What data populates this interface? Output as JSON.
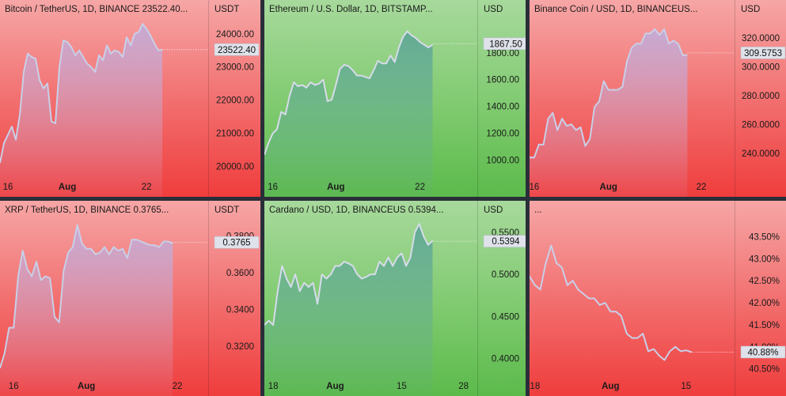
{
  "chart_data": [
    {
      "id": "btc",
      "type": "area",
      "title": "Bitcoin / TetherUS, 1D, BINANCE  23522.40...",
      "unit": "USDT",
      "theme": "red",
      "line_color": "#c9cfe8",
      "last_value_label": "23522.40",
      "last_value": 23522.4,
      "ylim": [
        19700,
        24400
      ],
      "y_ticks": [
        {
          "value": 20000,
          "label": "20000.00"
        },
        {
          "value": 21000,
          "label": "21000.00"
        },
        {
          "value": 22000,
          "label": "22000.00"
        },
        {
          "value": 23000,
          "label": "23000.00"
        },
        {
          "value": 24000,
          "label": "24000.00"
        }
      ],
      "x_ticks": [
        {
          "index": 2,
          "label": "16"
        },
        {
          "index": 17,
          "label": "Aug",
          "bold": true
        },
        {
          "index": 37,
          "label": "22"
        }
      ],
      "values": [
        20100,
        20700,
        20950,
        21200,
        20800,
        21550,
        22850,
        23400,
        23300,
        23250,
        22600,
        22350,
        22500,
        21350,
        21300,
        23000,
        23800,
        23750,
        23600,
        23350,
        23500,
        23300,
        23100,
        23000,
        22850,
        23350,
        23200,
        23650,
        23400,
        23500,
        23450,
        23300,
        23900,
        23650,
        24000,
        24050,
        24300,
        24150,
        23950,
        23700,
        23500,
        23520
      ]
    },
    {
      "id": "eth",
      "type": "area",
      "title": "Ethereum / U.S. Dollar, 1D, BITSTAMP...",
      "unit": "USD",
      "theme": "green",
      "line_color": "#d6dbea",
      "last_value_label": "1867.50",
      "last_value": 1867.5,
      "ylim": [
        880,
        2040
      ],
      "y_ticks": [
        {
          "value": 1000,
          "label": "1000.00"
        },
        {
          "value": 1200,
          "label": "1200.00"
        },
        {
          "value": 1400,
          "label": "1400.00"
        },
        {
          "value": 1600,
          "label": "1600.00"
        },
        {
          "value": 1800,
          "label": "1800.00"
        }
      ],
      "x_ticks": [
        {
          "index": 2,
          "label": "16"
        },
        {
          "index": 17,
          "label": "Aug",
          "bold": true
        },
        {
          "index": 37,
          "label": "22"
        }
      ],
      "values": [
        1040,
        1130,
        1200,
        1230,
        1360,
        1340,
        1480,
        1580,
        1550,
        1560,
        1540,
        1580,
        1560,
        1570,
        1600,
        1440,
        1450,
        1560,
        1680,
        1710,
        1700,
        1670,
        1630,
        1630,
        1620,
        1610,
        1670,
        1740,
        1720,
        1720,
        1780,
        1730,
        1840,
        1920,
        1960,
        1930,
        1910,
        1880,
        1860,
        1840,
        1860
      ]
    },
    {
      "id": "bnb",
      "type": "area",
      "title": "Binance Coin / USD, 1D, BINANCEUS...",
      "unit": "USD",
      "theme": "red",
      "line_color": "#c9cfe8",
      "last_value_label": "309.5753",
      "last_value": 309.5753,
      "ylim": [
        224,
        332
      ],
      "y_ticks": [
        {
          "value": 240,
          "label": "240.0000"
        },
        {
          "value": 260,
          "label": "260.0000"
        },
        {
          "value": 280,
          "label": "280.0000"
        },
        {
          "value": 300,
          "label": "300.0000"
        },
        {
          "value": 320,
          "label": "320.0000"
        }
      ],
      "x_ticks": [
        {
          "index": 1,
          "label": "16"
        },
        {
          "index": 17,
          "label": "Aug",
          "bold": true
        },
        {
          "index": 37,
          "label": "22"
        }
      ],
      "values": [
        237,
        237,
        246,
        246,
        264,
        268,
        256,
        264,
        259,
        260,
        256,
        258,
        245,
        250,
        272,
        276,
        290,
        284,
        284,
        284,
        286,
        304,
        313,
        316,
        316,
        323,
        323,
        326,
        322,
        326,
        316,
        318,
        316,
        308,
        308
      ]
    },
    {
      "id": "xrp",
      "type": "area",
      "title": "XRP / TetherUS, 1D, BINANCE  0.3765...",
      "unit": "USDT",
      "theme": "red",
      "line_color": "#c9cfe8",
      "last_value_label": "0.3765",
      "last_value": 0.3765,
      "ylim": [
        0.304,
        0.388
      ],
      "y_ticks": [
        {
          "value": 0.32,
          "label": "0.3200"
        },
        {
          "value": 0.34,
          "label": "0.3400"
        },
        {
          "value": 0.36,
          "label": "0.3600"
        },
        {
          "value": 0.38,
          "label": "0.3800"
        }
      ],
      "x_ticks": [
        {
          "index": 3,
          "label": "16"
        },
        {
          "index": 19,
          "label": "Aug",
          "bold": true
        },
        {
          "index": 39,
          "label": "22"
        }
      ],
      "values": [
        0.308,
        0.316,
        0.33,
        0.33,
        0.358,
        0.372,
        0.362,
        0.358,
        0.366,
        0.356,
        0.358,
        0.357,
        0.336,
        0.333,
        0.361,
        0.371,
        0.374,
        0.386,
        0.376,
        0.373,
        0.373,
        0.37,
        0.371,
        0.374,
        0.37,
        0.374,
        0.372,
        0.373,
        0.368,
        0.378,
        0.378,
        0.377,
        0.376,
        0.375,
        0.375,
        0.374,
        0.377,
        0.377,
        0.376
      ]
    },
    {
      "id": "ada",
      "type": "area",
      "title": "Cardano / USD, 1D, BINANCEUS  0.5394...",
      "unit": "USD",
      "theme": "green",
      "line_color": "#d6dbea",
      "last_value_label": "0.5394",
      "last_value": 0.5394,
      "ylim": [
        0.38,
        0.563
      ],
      "y_ticks": [
        {
          "value": 0.4,
          "label": "0.4000"
        },
        {
          "value": 0.45,
          "label": "0.4500"
        },
        {
          "value": 0.5,
          "label": "0.5000"
        },
        {
          "value": 0.55,
          "label": "0.5500"
        }
      ],
      "x_ticks": [
        {
          "index": 2,
          "label": "18"
        },
        {
          "index": 16,
          "label": "Aug",
          "bold": true
        },
        {
          "index": 31,
          "label": "15"
        },
        {
          "index": 45,
          "label": "28"
        }
      ],
      "values": [
        0.44,
        0.445,
        0.44,
        0.48,
        0.51,
        0.495,
        0.485,
        0.5,
        0.48,
        0.49,
        0.485,
        0.49,
        0.465,
        0.5,
        0.495,
        0.5,
        0.51,
        0.51,
        0.515,
        0.513,
        0.51,
        0.5,
        0.495,
        0.497,
        0.5,
        0.5,
        0.515,
        0.51,
        0.52,
        0.51,
        0.52,
        0.525,
        0.51,
        0.52,
        0.55,
        0.56,
        0.545,
        0.535,
        0.54
      ]
    },
    {
      "id": "pct",
      "type": "line",
      "title": "...",
      "unit": "",
      "theme": "red",
      "line_color": "#c9cfe8",
      "fill": false,
      "last_value_label": "40.88%",
      "last_value": 40.88,
      "ylim": [
        40.35,
        43.85
      ],
      "y_ticks": [
        {
          "value": 40.5,
          "label": "40.50%"
        },
        {
          "value": 41.0,
          "label": "41.00%"
        },
        {
          "value": 41.5,
          "label": "41.50%"
        },
        {
          "value": 42.0,
          "label": "42.00%"
        },
        {
          "value": 42.5,
          "label": "42.50%"
        },
        {
          "value": 43.0,
          "label": "43.00%"
        },
        {
          "value": 43.5,
          "label": "43.50%"
        }
      ],
      "x_ticks": [
        {
          "index": 1,
          "label": "18"
        },
        {
          "index": 15,
          "label": "Aug",
          "bold": true
        },
        {
          "index": 29,
          "label": "15"
        }
      ],
      "values": [
        42.6,
        42.4,
        42.3,
        42.9,
        43.3,
        42.9,
        42.8,
        42.4,
        42.5,
        42.3,
        42.2,
        42.1,
        42.1,
        41.95,
        42.0,
        41.8,
        41.8,
        41.7,
        41.3,
        41.2,
        41.2,
        41.3,
        40.9,
        40.95,
        40.8,
        40.7,
        40.9,
        41.0,
        40.9,
        40.92,
        40.88
      ]
    }
  ]
}
